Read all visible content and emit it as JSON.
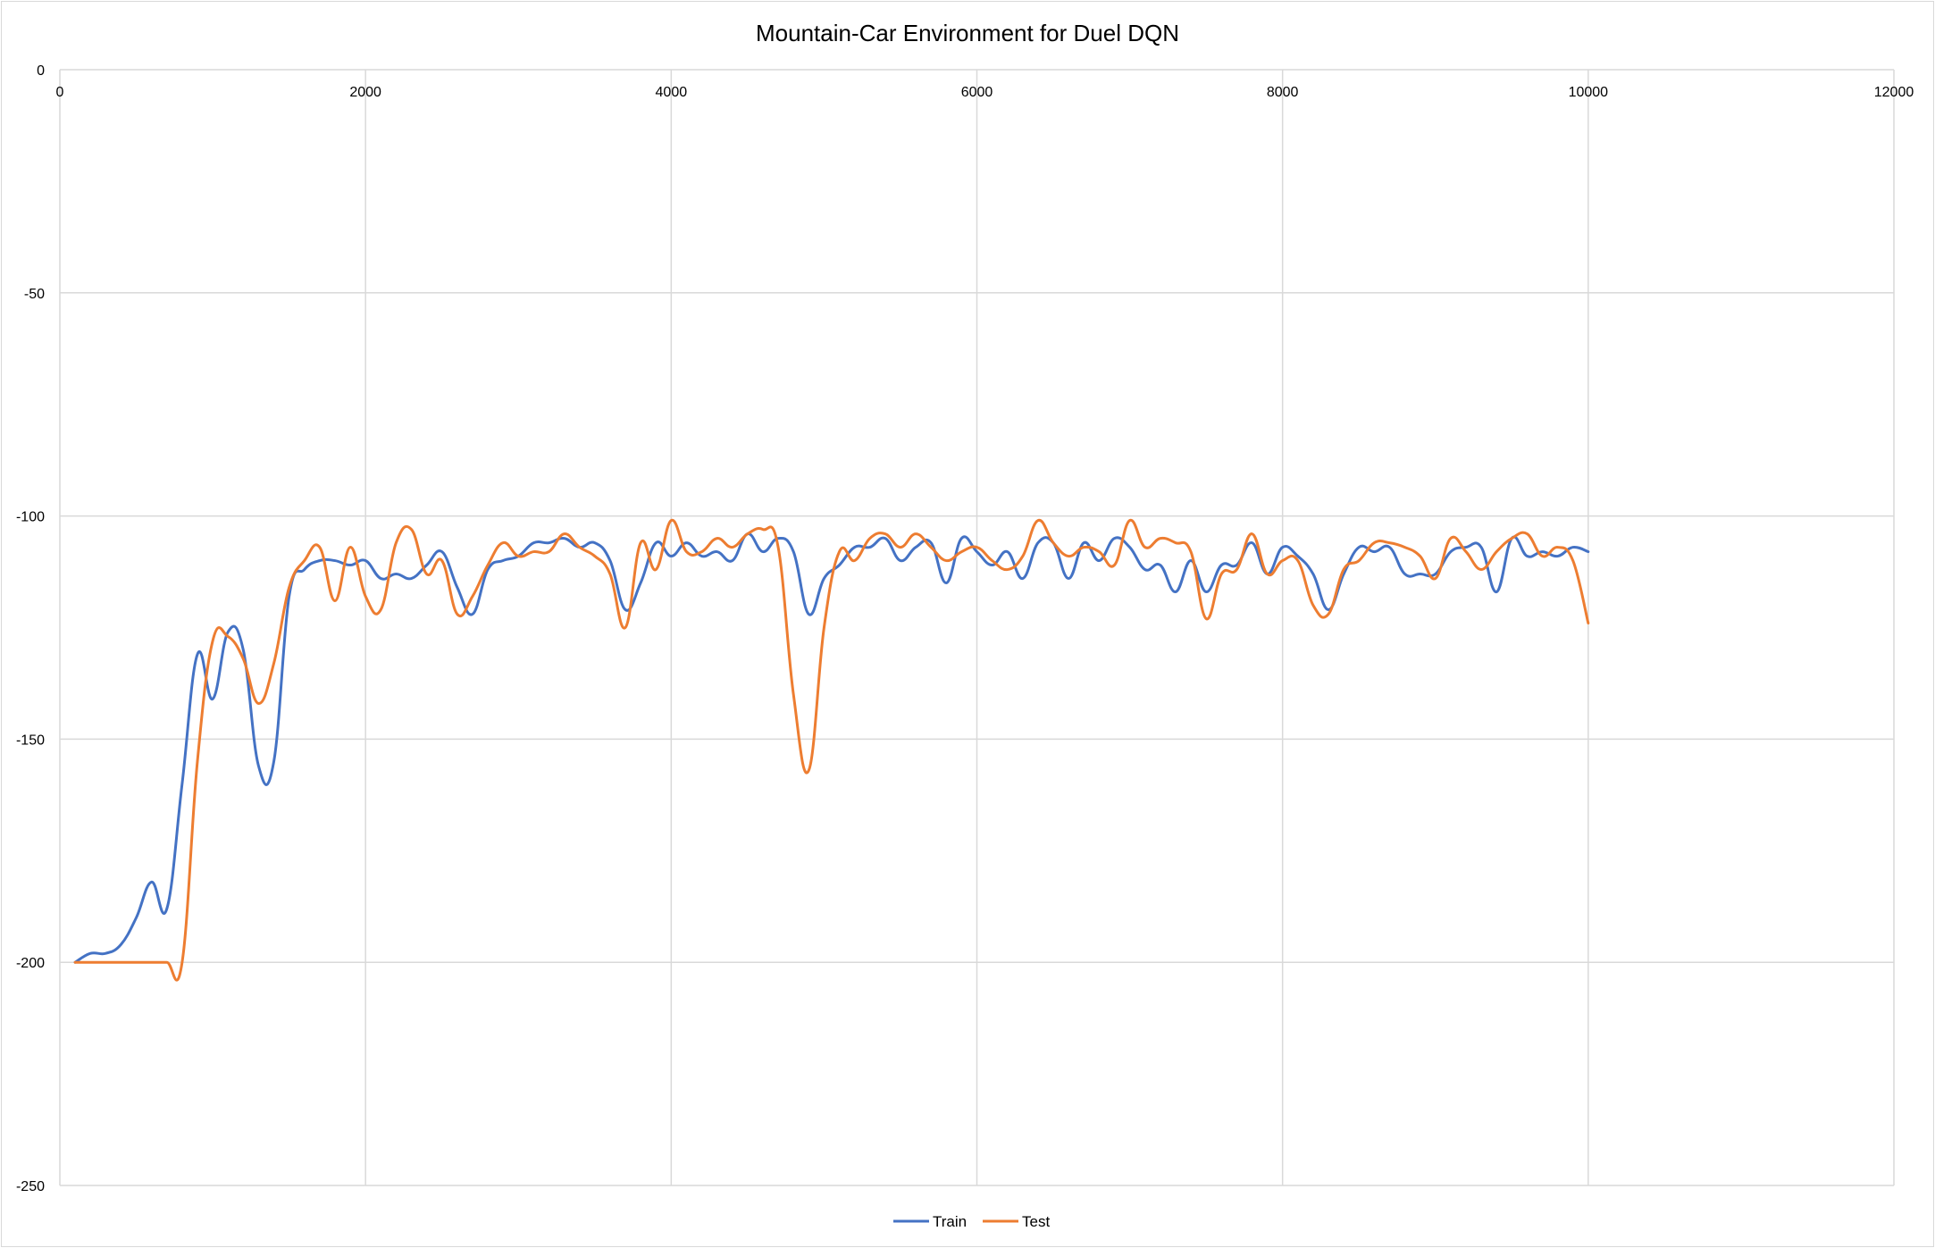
{
  "chart_data": {
    "type": "line",
    "title": "Mountain-Car Environment for Duel DQN",
    "xlabel": "",
    "ylabel": "",
    "xlim": [
      0,
      12000
    ],
    "ylim": [
      -250,
      0
    ],
    "x_ticks": [
      0,
      2000,
      4000,
      6000,
      8000,
      10000,
      12000
    ],
    "y_ticks": [
      0,
      -50,
      -100,
      -150,
      -200,
      -250
    ],
    "x_tick_labels": [
      "0",
      "2000",
      "4000",
      "6000",
      "8000",
      "10000",
      "12000"
    ],
    "y_tick_labels": [
      "0",
      "-50",
      "-100",
      "-150",
      "-200",
      "-250"
    ],
    "x_axis_position": "top",
    "grid": true,
    "legend_position": "bottom-center",
    "series": [
      {
        "name": "Train",
        "color": "#4472c4",
        "points": [
          [
            100,
            -200
          ],
          [
            200,
            -198
          ],
          [
            300,
            -198
          ],
          [
            400,
            -196
          ],
          [
            500,
            -190
          ],
          [
            600,
            -182
          ],
          [
            700,
            -188
          ],
          [
            800,
            -160
          ],
          [
            900,
            -131
          ],
          [
            1000,
            -141
          ],
          [
            1100,
            -126
          ],
          [
            1200,
            -130
          ],
          [
            1300,
            -156
          ],
          [
            1400,
            -155
          ],
          [
            1500,
            -118
          ],
          [
            1600,
            -112
          ],
          [
            1700,
            -110
          ],
          [
            1800,
            -110
          ],
          [
            1900,
            -111
          ],
          [
            2000,
            -110
          ],
          [
            2100,
            -114
          ],
          [
            2200,
            -113
          ],
          [
            2300,
            -114
          ],
          [
            2400,
            -111
          ],
          [
            2500,
            -108
          ],
          [
            2600,
            -116
          ],
          [
            2700,
            -122
          ],
          [
            2800,
            -112
          ],
          [
            2900,
            -110
          ],
          [
            3000,
            -109
          ],
          [
            3100,
            -106
          ],
          [
            3200,
            -106
          ],
          [
            3300,
            -105
          ],
          [
            3400,
            -107
          ],
          [
            3500,
            -106
          ],
          [
            3600,
            -110
          ],
          [
            3700,
            -121
          ],
          [
            3800,
            -115
          ],
          [
            3900,
            -106
          ],
          [
            4000,
            -109
          ],
          [
            4100,
            -106
          ],
          [
            4200,
            -109
          ],
          [
            4300,
            -108
          ],
          [
            4400,
            -110
          ],
          [
            4500,
            -104
          ],
          [
            4600,
            -108
          ],
          [
            4700,
            -105
          ],
          [
            4800,
            -108
          ],
          [
            4900,
            -122
          ],
          [
            5000,
            -114
          ],
          [
            5100,
            -111
          ],
          [
            5200,
            -107
          ],
          [
            5300,
            -107
          ],
          [
            5400,
            -105
          ],
          [
            5500,
            -110
          ],
          [
            5600,
            -107
          ],
          [
            5700,
            -106
          ],
          [
            5800,
            -115
          ],
          [
            5900,
            -105
          ],
          [
            6000,
            -108
          ],
          [
            6100,
            -111
          ],
          [
            6200,
            -108
          ],
          [
            6300,
            -114
          ],
          [
            6400,
            -106
          ],
          [
            6500,
            -106
          ],
          [
            6600,
            -114
          ],
          [
            6700,
            -106
          ],
          [
            6800,
            -110
          ],
          [
            6900,
            -105
          ],
          [
            7000,
            -107
          ],
          [
            7100,
            -112
          ],
          [
            7200,
            -111
          ],
          [
            7300,
            -117
          ],
          [
            7400,
            -110
          ],
          [
            7500,
            -117
          ],
          [
            7600,
            -111
          ],
          [
            7700,
            -111
          ],
          [
            7800,
            -106
          ],
          [
            7900,
            -113
          ],
          [
            8000,
            -107
          ],
          [
            8100,
            -109
          ],
          [
            8200,
            -113
          ],
          [
            8300,
            -121
          ],
          [
            8400,
            -113
          ],
          [
            8500,
            -107
          ],
          [
            8600,
            -108
          ],
          [
            8700,
            -107
          ],
          [
            8800,
            -113
          ],
          [
            8900,
            -113
          ],
          [
            9000,
            -113
          ],
          [
            9100,
            -108
          ],
          [
            9200,
            -107
          ],
          [
            9300,
            -107
          ],
          [
            9400,
            -117
          ],
          [
            9500,
            -105
          ],
          [
            9600,
            -109
          ],
          [
            9700,
            -108
          ],
          [
            9800,
            -109
          ],
          [
            9900,
            -107
          ],
          [
            10000,
            -108
          ]
        ]
      },
      {
        "name": "Test",
        "color": "#ed7d31",
        "points": [
          [
            100,
            -200
          ],
          [
            200,
            -200
          ],
          [
            300,
            -200
          ],
          [
            400,
            -200
          ],
          [
            500,
            -200
          ],
          [
            600,
            -200
          ],
          [
            700,
            -200
          ],
          [
            800,
            -200
          ],
          [
            900,
            -155
          ],
          [
            1000,
            -128
          ],
          [
            1100,
            -127
          ],
          [
            1200,
            -132
          ],
          [
            1300,
            -142
          ],
          [
            1400,
            -133
          ],
          [
            1500,
            -116
          ],
          [
            1600,
            -110
          ],
          [
            1700,
            -107
          ],
          [
            1800,
            -119
          ],
          [
            1900,
            -107
          ],
          [
            2000,
            -118
          ],
          [
            2100,
            -121
          ],
          [
            2200,
            -106
          ],
          [
            2300,
            -103
          ],
          [
            2400,
            -113
          ],
          [
            2500,
            -110
          ],
          [
            2600,
            -122
          ],
          [
            2700,
            -118
          ],
          [
            2800,
            -111
          ],
          [
            2900,
            -106
          ],
          [
            3000,
            -109
          ],
          [
            3100,
            -108
          ],
          [
            3200,
            -108
          ],
          [
            3300,
            -104
          ],
          [
            3400,
            -107
          ],
          [
            3500,
            -109
          ],
          [
            3600,
            -113
          ],
          [
            3700,
            -125
          ],
          [
            3800,
            -106
          ],
          [
            3900,
            -112
          ],
          [
            4000,
            -101
          ],
          [
            4100,
            -108
          ],
          [
            4200,
            -108
          ],
          [
            4300,
            -105
          ],
          [
            4400,
            -107
          ],
          [
            4500,
            -104
          ],
          [
            4600,
            -103
          ],
          [
            4700,
            -107
          ],
          [
            4800,
            -140
          ],
          [
            4900,
            -157
          ],
          [
            5000,
            -125
          ],
          [
            5100,
            -108
          ],
          [
            5200,
            -110
          ],
          [
            5300,
            -105
          ],
          [
            5400,
            -104
          ],
          [
            5500,
            -107
          ],
          [
            5600,
            -104
          ],
          [
            5700,
            -107
          ],
          [
            5800,
            -110
          ],
          [
            5900,
            -108
          ],
          [
            6000,
            -107
          ],
          [
            6100,
            -110
          ],
          [
            6200,
            -112
          ],
          [
            6300,
            -109
          ],
          [
            6400,
            -101
          ],
          [
            6500,
            -106
          ],
          [
            6600,
            -109
          ],
          [
            6700,
            -107
          ],
          [
            6800,
            -108
          ],
          [
            6900,
            -111
          ],
          [
            7000,
            -101
          ],
          [
            7100,
            -107
          ],
          [
            7200,
            -105
          ],
          [
            7300,
            -106
          ],
          [
            7400,
            -108
          ],
          [
            7500,
            -123
          ],
          [
            7600,
            -113
          ],
          [
            7700,
            -112
          ],
          [
            7800,
            -104
          ],
          [
            7900,
            -113
          ],
          [
            8000,
            -110
          ],
          [
            8100,
            -110
          ],
          [
            8200,
            -120
          ],
          [
            8300,
            -122
          ],
          [
            8400,
            -112
          ],
          [
            8500,
            -110
          ],
          [
            8600,
            -106
          ],
          [
            8700,
            -106
          ],
          [
            8800,
            -107
          ],
          [
            8900,
            -109
          ],
          [
            9000,
            -114
          ],
          [
            9100,
            -105
          ],
          [
            9200,
            -108
          ],
          [
            9300,
            -112
          ],
          [
            9400,
            -108
          ],
          [
            9500,
            -105
          ],
          [
            9600,
            -104
          ],
          [
            9700,
            -109
          ],
          [
            9800,
            -107
          ],
          [
            9900,
            -110
          ],
          [
            10000,
            -124
          ]
        ]
      }
    ]
  }
}
